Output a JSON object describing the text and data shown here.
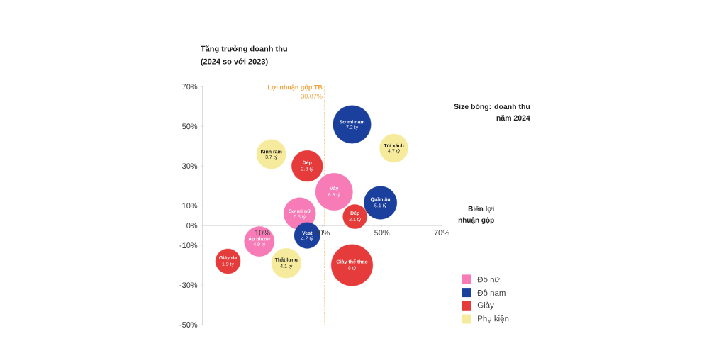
{
  "chart_data": {
    "type": "bubble",
    "xlabel": "Biên lợi nhuận gộp",
    "ylabel": "Tăng trưởng doanh thu (2024 so với 2023)",
    "xlim": [
      -10,
      70
    ],
    "xticks": [
      {
        "value": 10,
        "label": "10%"
      },
      {
        "value": 30,
        "label": "30%"
      },
      {
        "value": 50,
        "label": "50%"
      },
      {
        "value": 70,
        "label": "70%"
      }
    ],
    "ylim": [
      -50,
      70
    ],
    "yticks": [
      {
        "value": 70,
        "label": "70%"
      },
      {
        "value": 50,
        "label": "50%"
      },
      {
        "value": 30,
        "label": "30%"
      },
      {
        "value": 10,
        "label": "10%"
      },
      {
        "value": 0,
        "label": "0%"
      },
      {
        "value": -10,
        "label": "-10%"
      },
      {
        "value": -30,
        "label": "-30%"
      },
      {
        "value": -50,
        "label": "-50%"
      }
    ],
    "series": [
      {
        "name": "Đồ nữ",
        "color": "#f77bb6",
        "x": [
          34,
          22.5,
          9
        ],
        "values": [
          17,
          6,
          -8
        ],
        "sizes": [
          0.8,
          0.59,
          0.52
        ]
      },
      {
        "name": "Đồ nam",
        "color": "#1b3f9c",
        "x": [
          40,
          49.5,
          25
        ],
        "values": [
          51,
          11.5,
          -5
        ],
        "sizes": [
          0.83,
          0.63,
          0.39
        ]
      },
      {
        "name": "Giày",
        "color": "#e53b3b",
        "x": [
          25,
          41,
          -1.5,
          40
        ],
        "values": [
          30,
          4.5,
          -18,
          -20
        ],
        "sizes": [
          0.56,
          0.34,
          0.36,
          1
        ]
      },
      {
        "name": "Phụ kiện",
        "color": "#f6eb9c",
        "x": [
          13,
          54,
          18
        ],
        "values": [
          36,
          39,
          -19
        ],
        "sizes": [
          0.5,
          0.47,
          0.51
        ]
      }
    ],
    "ref_lines": [
      {
        "axis": "x",
        "value": 30.87,
        "label": "**Lợi nhuận gộp TB** 30,87%",
        "color": "#efa33e",
        "line_style": "dotted"
      }
    ],
    "legend": "bottom right",
    "annotations": [
      "Size bóng: doanh thu năm 2024",
      {
        "text": "Váy",
        "x": 34,
        "y": 17
      },
      {
        "text": "8.5 tỷ",
        "x": 34,
        "y": 17
      },
      {
        "text": "Sơ mi nữ",
        "x": 22.5,
        "y": 6
      },
      {
        "text": "6.3 tỷ",
        "x": 22.5,
        "y": 6
      },
      {
        "text": "Áo blazer",
        "x": 9,
        "y": -8
      },
      {
        "text": "4.9 tỷ",
        "x": 9,
        "y": -8
      },
      {
        "text": "Sơ mi nam",
        "x": 40,
        "y": 51
      },
      {
        "text": "7.2 tỷ",
        "x": 40,
        "y": 51
      },
      {
        "text": "Quần âu",
        "x": 49.5,
        "y": 11.5
      },
      {
        "text": "5.1 tỷ",
        "x": 49.5,
        "y": 11.5
      },
      {
        "text": "Vest",
        "x": 25,
        "y": -5
      },
      {
        "text": "4.2 tỷ",
        "x": 25,
        "y": -5
      },
      {
        "text": "Dép",
        "x": 25,
        "y": 30
      },
      {
        "text": "2.3 tỷ",
        "x": 25,
        "y": 30
      },
      {
        "text": "Dép",
        "x": 41,
        "y": 4.5
      },
      {
        "text": "2.1 tỷ",
        "x": 41,
        "y": 4.5
      },
      {
        "text": "Giày da",
        "x": -1.5,
        "y": -18
      },
      {
        "text": "1.9 tỷ",
        "x": -1.5,
        "y": -18
      },
      {
        "text": "Giày thể thao",
        "x": 40,
        "y": -20
      },
      {
        "text": "8 tỷ",
        "x": 40,
        "y": -20
      },
      {
        "text": "Kính râm",
        "x": 13,
        "y": 36
      },
      {
        "text": "3.7 tỷ",
        "x": 13,
        "y": 36
      },
      {
        "text": "Túi xách",
        "x": 54,
        "y": 39
      },
      {
        "text": "4.7 tỷ",
        "x": 54,
        "y": 39
      },
      {
        "text": "Thắt lưng",
        "x": 18,
        "y": -19
      },
      {
        "text": "4.1 tỷ",
        "x": 18,
        "y": -19
      }
    ]
  }
}
